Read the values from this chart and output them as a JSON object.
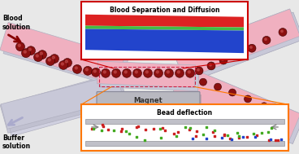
{
  "bg_color": "#e8e8e8",
  "blood_label": "Blood\nsolution",
  "buffer_label": "Buffer\nsolution",
  "channel_color": "#f0b0c0",
  "channel_edge": "#b0b0c0",
  "channel_shadow": "#c8c8d8",
  "bead_color": "#8B1010",
  "bead_edge": "#3a0000",
  "inset1_title": "Blood Separation and Diffusion",
  "inset1_border": "#cc0000",
  "red_band_color": "#dd2222",
  "green_band_color": "#44bb44",
  "blue_band_color": "#2244cc",
  "magnet_label": "Magnet",
  "magnet_color": "#b8b8c0",
  "magnet_edge": "#888898",
  "inset2_title": "Bead deflection",
  "inset2_border": "#ff7700",
  "blood_arrow_color": "#880000",
  "buffer_arrow_color": "#aaaacc",
  "channel_inner_border": "#cc2244"
}
